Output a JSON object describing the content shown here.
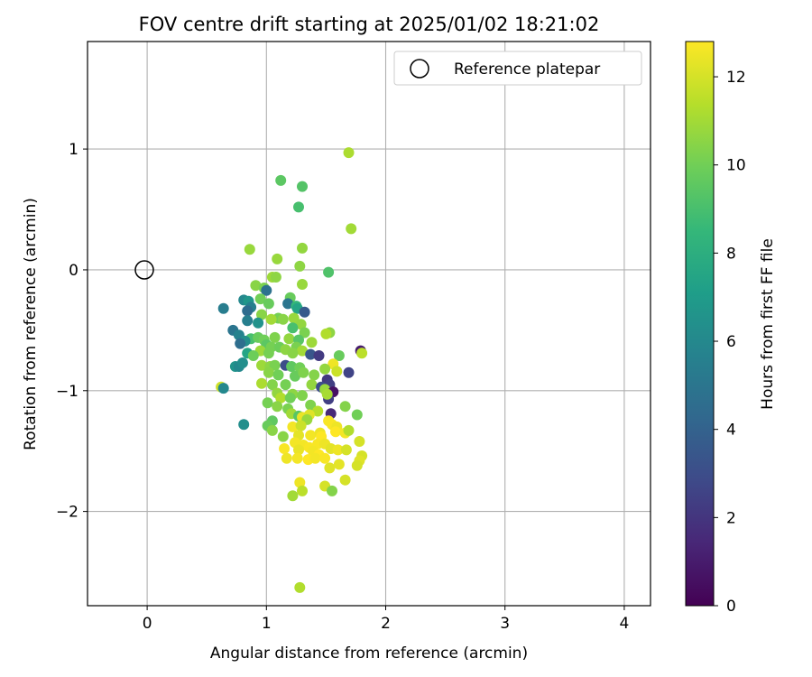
{
  "chart_data": {
    "type": "scatter",
    "title": "FOV centre drift starting at 2025/01/02 18:21:02",
    "xlabel": "Angular distance from reference (arcmin)",
    "ylabel": "Rotation from reference (arcmin)",
    "xlim": [
      -0.5,
      4.22
    ],
    "ylim": [
      -2.78,
      1.89
    ],
    "xticks": [
      "0",
      "1",
      "2",
      "3",
      "4"
    ],
    "yticks": [
      "−2",
      "−1",
      "0",
      "1"
    ],
    "grid": true,
    "legend": {
      "placement": "top-right",
      "entries": [
        "Reference platepar"
      ]
    },
    "reference_point": {
      "x": 0,
      "y": 0
    },
    "colorbar": {
      "label": "Hours from first FF file",
      "range": [
        0,
        12.8
      ],
      "ticks": [
        "0",
        "2",
        "4",
        "6",
        "8",
        "10",
        "12"
      ],
      "colormap": "viridis"
    },
    "colormap_stops": [
      "#440154",
      "#482777",
      "#3e4a89",
      "#31688e",
      "#26828e",
      "#1f9e89",
      "#35b779",
      "#6ece58",
      "#b5de2b",
      "#fde725"
    ],
    "point_fields": [
      "x",
      "y",
      "hours"
    ],
    "points": [
      [
        1.69,
        0.97,
        11.2
      ],
      [
        1.12,
        0.74,
        9.5
      ],
      [
        1.3,
        0.69,
        9.3
      ],
      [
        1.27,
        0.52,
        9.0
      ],
      [
        1.71,
        0.34,
        11.0
      ],
      [
        0.86,
        0.17,
        10.8
      ],
      [
        1.3,
        0.18,
        10.7
      ],
      [
        1.09,
        0.09,
        10.8
      ],
      [
        1.28,
        0.03,
        10.6
      ],
      [
        1.52,
        -0.02,
        9.2
      ],
      [
        1.05,
        -0.06,
        10.9
      ],
      [
        1.08,
        -0.06,
        10.6
      ],
      [
        1.3,
        -0.12,
        10.8
      ],
      [
        0.91,
        -0.13,
        10.5
      ],
      [
        0.98,
        -0.15,
        10.2
      ],
      [
        1.0,
        -0.17,
        4.8
      ],
      [
        0.81,
        -0.25,
        6.0
      ],
      [
        0.85,
        -0.26,
        6.7
      ],
      [
        0.95,
        -0.24,
        10.0
      ],
      [
        0.87,
        -0.31,
        5.5
      ],
      [
        1.02,
        -0.28,
        9.8
      ],
      [
        1.2,
        -0.23,
        9.8
      ],
      [
        1.18,
        -0.28,
        5.0
      ],
      [
        1.25,
        -0.3,
        8.5
      ],
      [
        1.26,
        -0.32,
        7.5
      ],
      [
        1.32,
        -0.35,
        3.6
      ],
      [
        0.64,
        -0.32,
        5.4
      ],
      [
        0.84,
        -0.34,
        4.5
      ],
      [
        0.96,
        -0.37,
        10.5
      ],
      [
        1.1,
        -0.4,
        10.1
      ],
      [
        1.14,
        -0.41,
        10.5
      ],
      [
        1.23,
        -0.4,
        10.8
      ],
      [
        0.84,
        -0.42,
        5.5
      ],
      [
        0.93,
        -0.44,
        6.5
      ],
      [
        1.04,
        -0.41,
        11.0
      ],
      [
        1.29,
        -0.45,
        10.7
      ],
      [
        0.72,
        -0.5,
        5.0
      ],
      [
        1.22,
        -0.48,
        9.0
      ],
      [
        1.32,
        -0.52,
        10.2
      ],
      [
        1.53,
        -0.52,
        10.6
      ],
      [
        1.5,
        -0.53,
        11.3
      ],
      [
        0.77,
        -0.54,
        5.7
      ],
      [
        0.87,
        -0.57,
        9.0
      ],
      [
        1.07,
        -0.56,
        10.3
      ],
      [
        1.19,
        -0.57,
        10.7
      ],
      [
        1.27,
        -0.58,
        9.4
      ],
      [
        0.82,
        -0.59,
        6.3
      ],
      [
        0.93,
        -0.56,
        9.8
      ],
      [
        0.98,
        -0.58,
        10.0
      ],
      [
        1.38,
        -0.6,
        10.9
      ],
      [
        0.78,
        -0.61,
        4.6
      ],
      [
        1.0,
        -0.62,
        9.5
      ],
      [
        1.04,
        -0.64,
        10.1
      ],
      [
        1.11,
        -0.64,
        9.9
      ],
      [
        1.25,
        -0.64,
        10.2
      ],
      [
        1.16,
        -0.66,
        10.6
      ],
      [
        1.3,
        -0.67,
        11.0
      ],
      [
        0.95,
        -0.67,
        10.9
      ],
      [
        0.84,
        -0.69,
        7.5
      ],
      [
        0.89,
        -0.71,
        9.9
      ],
      [
        1.02,
        -0.69,
        10.1
      ],
      [
        1.22,
        -0.69,
        10.5
      ],
      [
        1.37,
        -0.7,
        3.4
      ],
      [
        1.44,
        -0.71,
        2.2
      ],
      [
        1.61,
        -0.71,
        9.8
      ],
      [
        1.79,
        -0.67,
        1.0
      ],
      [
        1.8,
        -0.69,
        11.5
      ],
      [
        0.74,
        -0.8,
        6.6
      ],
      [
        0.77,
        -0.8,
        6.0
      ],
      [
        0.8,
        -0.77,
        6.3
      ],
      [
        0.96,
        -0.79,
        10.9
      ],
      [
        1.03,
        -0.8,
        10.6
      ],
      [
        1.07,
        -0.79,
        10.2
      ],
      [
        1.16,
        -0.79,
        3.0
      ],
      [
        1.21,
        -0.8,
        9.6
      ],
      [
        1.28,
        -0.81,
        10.0
      ],
      [
        1.56,
        -0.78,
        12.5
      ],
      [
        1.59,
        -0.84,
        11.8
      ],
      [
        1.69,
        -0.85,
        2.6
      ],
      [
        1.49,
        -0.82,
        10.7
      ],
      [
        1.02,
        -0.85,
        10.5
      ],
      [
        1.1,
        -0.87,
        10.0
      ],
      [
        1.24,
        -0.88,
        9.8
      ],
      [
        1.31,
        -0.85,
        10.3
      ],
      [
        1.4,
        -0.87,
        10.4
      ],
      [
        1.51,
        -0.91,
        2.1
      ],
      [
        1.53,
        -0.95,
        2.4
      ],
      [
        0.96,
        -0.94,
        11.2
      ],
      [
        1.05,
        -0.95,
        10.4
      ],
      [
        1.16,
        -0.95,
        10.1
      ],
      [
        1.38,
        -0.95,
        10.7
      ],
      [
        1.46,
        -0.97,
        3.0
      ],
      [
        1.49,
        -0.99,
        10.8
      ],
      [
        1.56,
        -1.01,
        0.6
      ],
      [
        0.62,
        -0.97,
        11.9
      ],
      [
        0.64,
        -0.98,
        6.0
      ],
      [
        1.09,
        -1.02,
        10.7
      ],
      [
        1.22,
        -1.03,
        10.6
      ],
      [
        1.3,
        -1.04,
        10.3
      ],
      [
        1.12,
        -1.06,
        11.3
      ],
      [
        1.2,
        -1.06,
        10.0
      ],
      [
        1.52,
        -1.07,
        2.4
      ],
      [
        1.51,
        -1.03,
        11.1
      ],
      [
        1.01,
        -1.1,
        10.1
      ],
      [
        1.09,
        -1.13,
        10.5
      ],
      [
        1.18,
        -1.15,
        10.2
      ],
      [
        1.37,
        -1.12,
        10.3
      ],
      [
        1.43,
        -1.17,
        11.4
      ],
      [
        1.66,
        -1.13,
        10.4
      ],
      [
        1.21,
        -1.19,
        11.0
      ],
      [
        1.27,
        -1.21,
        9.4
      ],
      [
        1.3,
        -1.22,
        12.4
      ],
      [
        1.36,
        -1.2,
        12.2
      ],
      [
        1.05,
        -1.25,
        9.6
      ],
      [
        1.34,
        -1.24,
        10.8
      ],
      [
        1.54,
        -1.19,
        1.5
      ],
      [
        1.76,
        -1.2,
        10.0
      ],
      [
        0.81,
        -1.28,
        6.3
      ],
      [
        1.01,
        -1.29,
        9.8
      ],
      [
        1.05,
        -1.33,
        10.5
      ],
      [
        1.22,
        -1.3,
        12.6
      ],
      [
        1.29,
        -1.29,
        11.8
      ],
      [
        1.52,
        -1.25,
        12.7
      ],
      [
        1.55,
        -1.28,
        12.7
      ],
      [
        1.59,
        -1.3,
        12.5
      ],
      [
        1.58,
        -1.34,
        12.8
      ],
      [
        1.66,
        -1.35,
        12.6
      ],
      [
        1.69,
        -1.33,
        11.3
      ],
      [
        1.14,
        -1.38,
        10.5
      ],
      [
        1.27,
        -1.37,
        12.3
      ],
      [
        1.37,
        -1.37,
        12.6
      ],
      [
        1.45,
        -1.35,
        12.5
      ],
      [
        1.46,
        -1.38,
        12.8
      ],
      [
        1.78,
        -1.42,
        12.0
      ],
      [
        1.24,
        -1.43,
        12.6
      ],
      [
        1.31,
        -1.45,
        12.6
      ],
      [
        1.36,
        -1.47,
        12.7
      ],
      [
        1.43,
        -1.44,
        12.7
      ],
      [
        1.49,
        -1.44,
        12.5
      ],
      [
        1.15,
        -1.48,
        12.7
      ],
      [
        1.27,
        -1.49,
        12.4
      ],
      [
        1.39,
        -1.5,
        12.6
      ],
      [
        1.44,
        -1.53,
        12.8
      ],
      [
        1.54,
        -1.48,
        12.3
      ],
      [
        1.6,
        -1.49,
        12.5
      ],
      [
        1.67,
        -1.49,
        12.0
      ],
      [
        1.8,
        -1.54,
        12.0
      ],
      [
        1.17,
        -1.56,
        12.5
      ],
      [
        1.26,
        -1.56,
        12.6
      ],
      [
        1.35,
        -1.57,
        12.8
      ],
      [
        1.41,
        -1.56,
        12.6
      ],
      [
        1.49,
        -1.56,
        12.7
      ],
      [
        1.78,
        -1.58,
        12.2
      ],
      [
        1.53,
        -1.64,
        12.2
      ],
      [
        1.61,
        -1.61,
        12.3
      ],
      [
        1.76,
        -1.62,
        12.0
      ],
      [
        1.66,
        -1.74,
        12.0
      ],
      [
        1.28,
        -1.76,
        12.5
      ],
      [
        1.49,
        -1.79,
        12.0
      ],
      [
        1.3,
        -1.83,
        11.5
      ],
      [
        1.55,
        -1.83,
        10.4
      ],
      [
        1.22,
        -1.87,
        11.0
      ],
      [
        1.28,
        -2.63,
        11.3
      ]
    ]
  }
}
